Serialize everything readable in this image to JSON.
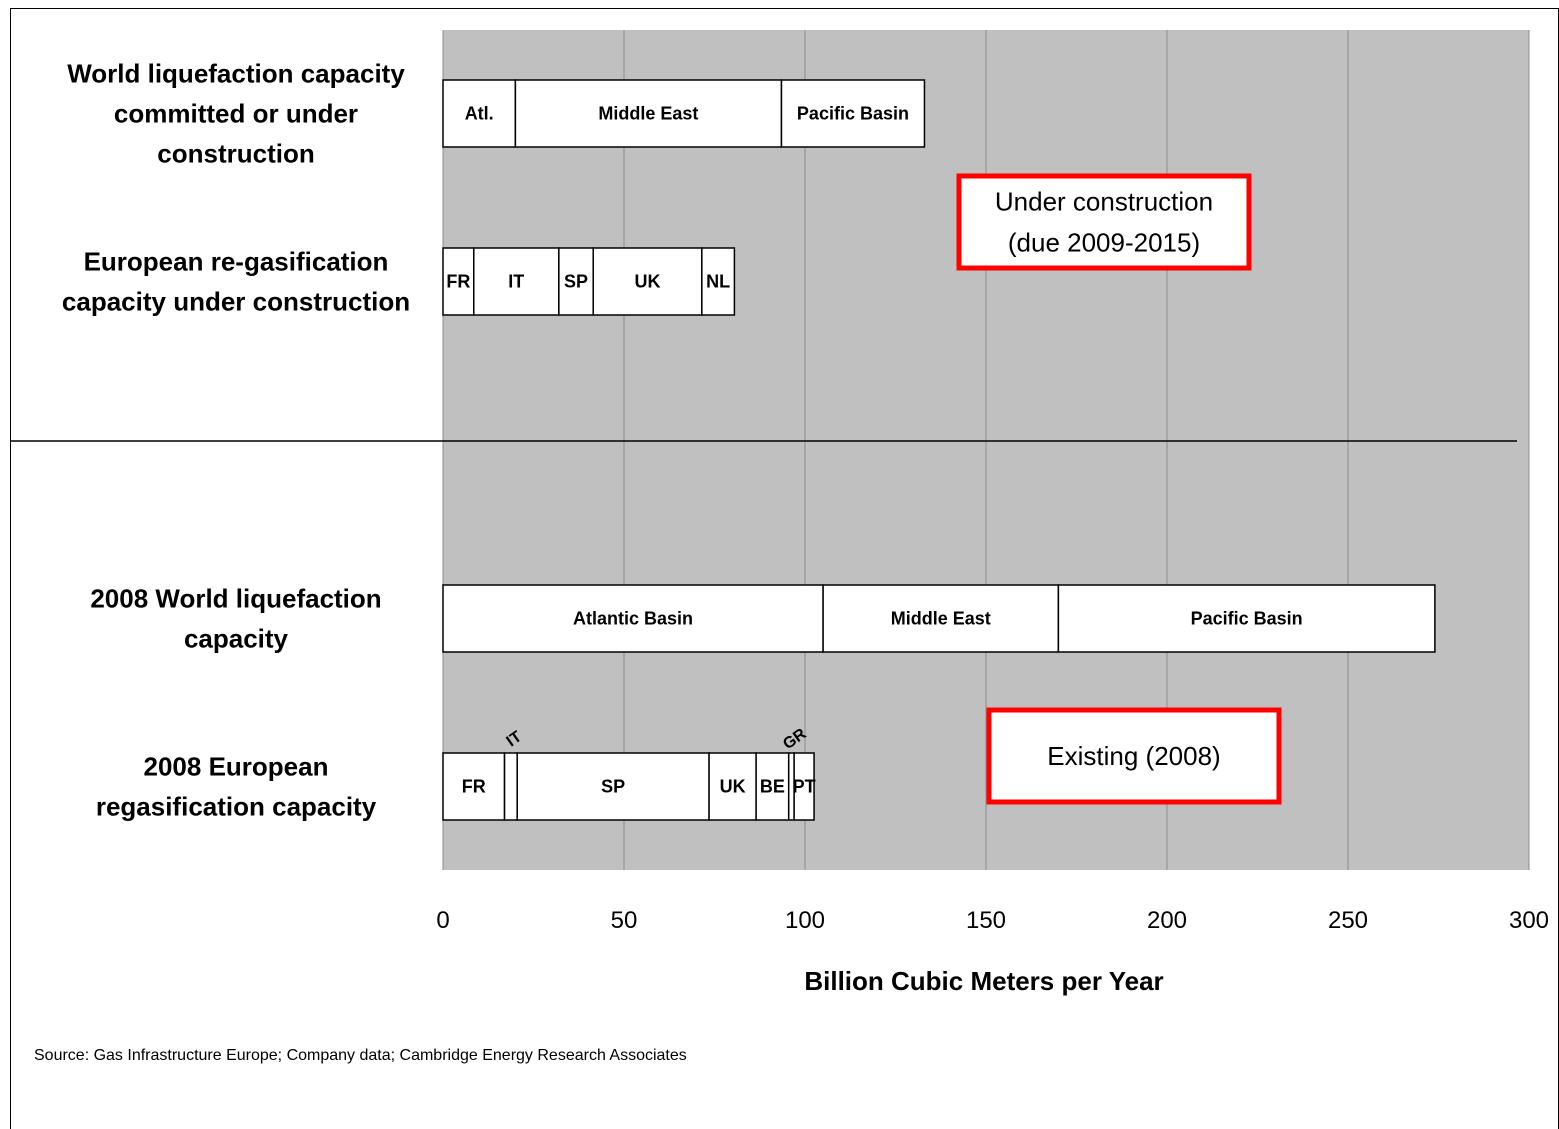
{
  "chart_data": {
    "type": "bar",
    "orientation": "horizontal",
    "stacked": true,
    "xlabel": "Billion Cubic Meters per Year",
    "xlim": [
      0,
      300
    ],
    "xticks": [
      0,
      50,
      100,
      150,
      200,
      250,
      300
    ],
    "grid": true,
    "categories": [
      {
        "id": "world-liq-committed",
        "label_lines": [
          "World liquefaction capacity",
          "committed or under",
          "construction"
        ],
        "segments": [
          {
            "label": "Atl.",
            "value": 20
          },
          {
            "label": "Middle East",
            "value": 73.5
          },
          {
            "label": "Pacific Basin",
            "value": 39.5
          }
        ]
      },
      {
        "id": "eu-regas-construction",
        "label_lines": [
          "European re-gasification",
          "capacity under construction"
        ],
        "segments": [
          {
            "label": "FR",
            "value": 8.5
          },
          {
            "label": "IT",
            "value": 23.5
          },
          {
            "label": "SP",
            "value": 9.5
          },
          {
            "label": "UK",
            "value": 30
          },
          {
            "label": "NL",
            "value": 9
          }
        ]
      },
      {
        "id": "world-liq-2008",
        "label_lines": [
          "2008 World liquefaction",
          "capacity"
        ],
        "segments": [
          {
            "label": "Atlantic Basin",
            "value": 105
          },
          {
            "label": "Middle East",
            "value": 65
          },
          {
            "label": "Pacific Basin",
            "value": 104
          }
        ]
      },
      {
        "id": "eu-regas-2008",
        "label_lines": [
          "2008 European",
          "regasification capacity"
        ],
        "segments": [
          {
            "label": "FR",
            "value": 17
          },
          {
            "label": "IT",
            "value": 3.5,
            "label_rotated": true
          },
          {
            "label": "SP",
            "value": 53
          },
          {
            "label": "UK",
            "value": 13
          },
          {
            "label": "BE",
            "value": 9
          },
          {
            "label": "GR",
            "value": 1.5,
            "label_rotated": true
          },
          {
            "label": "PT",
            "value": 5.5
          }
        ]
      }
    ],
    "annotations": [
      {
        "id": "under-construction",
        "lines": [
          "Under construction",
          "(due 2009-2015)"
        ],
        "border_color": "#ff0000"
      },
      {
        "id": "existing",
        "lines": [
          "Existing (2008)"
        ],
        "border_color": "#ff0000"
      }
    ],
    "source": "Source: Gas Infrastructure Europe; Company data; Cambridge Energy Research Associates",
    "colors": {
      "plot_background": "#c0c0c0",
      "bar_fill": "#ffffff",
      "bar_stroke": "#000000",
      "gridline": "#8c8c8c",
      "callout_border": "#ff0000"
    }
  }
}
